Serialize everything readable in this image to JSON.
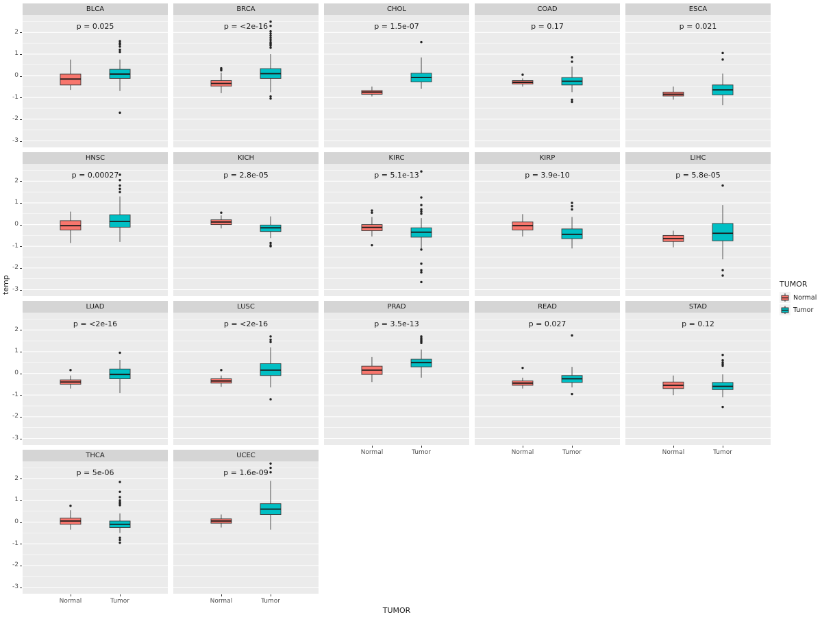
{
  "figure": {
    "y_label": "temp",
    "x_label": "TUMOR",
    "x_categories": [
      "Normal",
      "Tumor"
    ],
    "y_ticks": [
      2,
      1,
      0,
      -1,
      -2,
      -3
    ],
    "legend": {
      "title": "TUMOR",
      "entries": [
        {
          "label": "Normal",
          "color": "#F8766D"
        },
        {
          "label": "Tumor",
          "color": "#00BFC4"
        }
      ]
    }
  },
  "chart_data": {
    "type": "boxplot",
    "facet_layout": {
      "rows": 4,
      "cols": 5,
      "facet_count": 17
    },
    "x_categories": [
      "Normal",
      "Tumor"
    ],
    "y_range": [
      -3.3,
      2.8
    ],
    "colors": {
      "Normal": "#F8766D",
      "Tumor": "#00BFC4"
    },
    "grid": true,
    "legend_position": "right",
    "facets": [
      {
        "title": "BLCA",
        "p_label": "p = 0.025",
        "groups": [
          {
            "name": "Normal",
            "whisker_low": -0.65,
            "q1": -0.42,
            "median": -0.15,
            "q3": 0.08,
            "whisker_high": 0.75,
            "outliers": []
          },
          {
            "name": "Tumor",
            "whisker_low": -0.7,
            "q1": -0.12,
            "median": 0.08,
            "q3": 0.3,
            "whisker_high": 0.75,
            "outliers": [
              1.6,
              1.5,
              1.45,
              1.35,
              1.2,
              1.1,
              -1.7
            ]
          }
        ]
      },
      {
        "title": "BRCA",
        "p_label": "p = <2e-16",
        "groups": [
          {
            "name": "Normal",
            "whisker_low": -0.8,
            "q1": -0.48,
            "median": -0.35,
            "q3": -0.22,
            "whisker_high": 0.15,
            "outliers": [
              0.35,
              0.3,
              0.25
            ]
          },
          {
            "name": "Tumor",
            "whisker_low": -0.75,
            "q1": -0.12,
            "median": 0.1,
            "q3": 0.33,
            "whisker_high": 1.0,
            "outliers": [
              2.5,
              2.3,
              2.05,
              1.95,
              1.85,
              1.75,
              1.65,
              1.55,
              1.5,
              1.45,
              1.4,
              1.3,
              -0.95,
              -1.05
            ]
          }
        ]
      },
      {
        "title": "CHOL",
        "p_label": "p = 1.5e-07",
        "groups": [
          {
            "name": "Normal",
            "whisker_low": -0.95,
            "q1": -0.85,
            "median": -0.75,
            "q3": -0.68,
            "whisker_high": -0.5,
            "outliers": []
          },
          {
            "name": "Tumor",
            "whisker_low": -0.6,
            "q1": -0.28,
            "median": -0.08,
            "q3": 0.12,
            "whisker_high": 0.85,
            "outliers": [
              1.55
            ]
          }
        ]
      },
      {
        "title": "COAD",
        "p_label": "p = 0.17",
        "groups": [
          {
            "name": "Normal",
            "whisker_low": -0.5,
            "q1": -0.38,
            "median": -0.3,
            "q3": -0.22,
            "whisker_high": -0.12,
            "outliers": [
              0.05
            ]
          },
          {
            "name": "Tumor",
            "whisker_low": -0.75,
            "q1": -0.42,
            "median": -0.25,
            "q3": -0.08,
            "whisker_high": 0.42,
            "outliers": [
              0.85,
              0.65,
              -1.1,
              -1.2
            ]
          }
        ]
      },
      {
        "title": "ESCA",
        "p_label": "p = 0.021",
        "groups": [
          {
            "name": "Normal",
            "whisker_low": -1.1,
            "q1": -0.93,
            "median": -0.85,
            "q3": -0.75,
            "whisker_high": -0.5,
            "outliers": []
          },
          {
            "name": "Tumor",
            "whisker_low": -1.35,
            "q1": -0.88,
            "median": -0.65,
            "q3": -0.42,
            "whisker_high": 0.1,
            "outliers": [
              1.05,
              0.75
            ]
          }
        ]
      },
      {
        "title": "HNSC",
        "p_label": "p = 0.00027",
        "groups": [
          {
            "name": "Normal",
            "whisker_low": -0.85,
            "q1": -0.25,
            "median": -0.05,
            "q3": 0.18,
            "whisker_high": 0.6,
            "outliers": []
          },
          {
            "name": "Tumor",
            "whisker_low": -0.8,
            "q1": -0.12,
            "median": 0.15,
            "q3": 0.45,
            "whisker_high": 1.3,
            "outliers": [
              2.3,
              2.05,
              1.8,
              1.65,
              1.5
            ]
          }
        ]
      },
      {
        "title": "KICH",
        "p_label": "p = 2.8e-05",
        "groups": [
          {
            "name": "Normal",
            "whisker_low": -0.18,
            "q1": 0.0,
            "median": 0.12,
            "q3": 0.22,
            "whisker_high": 0.42,
            "outliers": [
              0.55
            ]
          },
          {
            "name": "Tumor",
            "whisker_low": -0.62,
            "q1": -0.32,
            "median": -0.15,
            "q3": -0.02,
            "whisker_high": 0.38,
            "outliers": [
              -0.85,
              -0.95,
              -1.0
            ]
          }
        ]
      },
      {
        "title": "KIRC",
        "p_label": "p = 5.1e-13",
        "groups": [
          {
            "name": "Normal",
            "whisker_low": -0.55,
            "q1": -0.28,
            "median": -0.13,
            "q3": 0.0,
            "whisker_high": 0.35,
            "outliers": [
              0.65,
              0.55,
              -0.95
            ]
          },
          {
            "name": "Tumor",
            "whisker_low": -1.1,
            "q1": -0.58,
            "median": -0.35,
            "q3": -0.15,
            "whisker_high": 0.3,
            "outliers": [
              2.45,
              1.25,
              0.9,
              0.7,
              0.6,
              0.5,
              -1.15,
              -1.8,
              -2.1,
              -2.2,
              -2.65
            ]
          }
        ]
      },
      {
        "title": "KIRP",
        "p_label": "p = 3.9e-10",
        "groups": [
          {
            "name": "Normal",
            "whisker_low": -0.55,
            "q1": -0.25,
            "median": -0.05,
            "q3": 0.12,
            "whisker_high": 0.48,
            "outliers": []
          },
          {
            "name": "Tumor",
            "whisker_low": -1.1,
            "q1": -0.65,
            "median": -0.45,
            "q3": -0.2,
            "whisker_high": 0.35,
            "outliers": [
              1.0,
              0.85,
              0.7
            ]
          }
        ]
      },
      {
        "title": "LIHC",
        "p_label": "p = 5.8e-05",
        "groups": [
          {
            "name": "Normal",
            "whisker_low": -1.05,
            "q1": -0.78,
            "median": -0.65,
            "q3": -0.5,
            "whisker_high": -0.28,
            "outliers": []
          },
          {
            "name": "Tumor",
            "whisker_low": -1.6,
            "q1": -0.75,
            "median": -0.4,
            "q3": 0.05,
            "whisker_high": 0.9,
            "outliers": [
              1.8,
              -2.1,
              -2.35
            ]
          }
        ]
      },
      {
        "title": "LUAD",
        "p_label": "p = <2e-16",
        "groups": [
          {
            "name": "Normal",
            "whisker_low": -0.7,
            "q1": -0.5,
            "median": -0.4,
            "q3": -0.3,
            "whisker_high": -0.1,
            "outliers": [
              0.15
            ]
          },
          {
            "name": "Tumor",
            "whisker_low": -0.9,
            "q1": -0.25,
            "median": -0.05,
            "q3": 0.2,
            "whisker_high": 0.62,
            "outliers": [
              0.95
            ]
          }
        ]
      },
      {
        "title": "LUSC",
        "p_label": "p = <2e-16",
        "groups": [
          {
            "name": "Normal",
            "whisker_low": -0.62,
            "q1": -0.45,
            "median": -0.35,
            "q3": -0.25,
            "whisker_high": -0.1,
            "outliers": [
              0.15
            ]
          },
          {
            "name": "Tumor",
            "whisker_low": -0.65,
            "q1": -0.1,
            "median": 0.15,
            "q3": 0.45,
            "whisker_high": 1.2,
            "outliers": [
              1.7,
              1.55,
              1.45,
              -1.2
            ]
          }
        ]
      },
      {
        "title": "PRAD",
        "p_label": "p = 3.5e-13",
        "groups": [
          {
            "name": "Normal",
            "whisker_low": -0.4,
            "q1": -0.05,
            "median": 0.15,
            "q3": 0.33,
            "whisker_high": 0.75,
            "outliers": []
          },
          {
            "name": "Tumor",
            "whisker_low": -0.2,
            "q1": 0.3,
            "median": 0.5,
            "q3": 0.65,
            "whisker_high": 1.1,
            "outliers": [
              1.7,
              1.62,
              1.55,
              1.5,
              1.45,
              1.4
            ]
          }
        ]
      },
      {
        "title": "READ",
        "p_label": "p = 0.027",
        "groups": [
          {
            "name": "Normal",
            "whisker_low": -0.7,
            "q1": -0.55,
            "median": -0.45,
            "q3": -0.35,
            "whisker_high": -0.2,
            "outliers": [
              0.25
            ]
          },
          {
            "name": "Tumor",
            "whisker_low": -0.65,
            "q1": -0.42,
            "median": -0.25,
            "q3": -0.1,
            "whisker_high": 0.3,
            "outliers": [
              1.75,
              -0.95
            ]
          }
        ]
      },
      {
        "title": "STAD",
        "p_label": "p = 0.12",
        "groups": [
          {
            "name": "Normal",
            "whisker_low": -1.0,
            "q1": -0.7,
            "median": -0.55,
            "q3": -0.4,
            "whisker_high": -0.1,
            "outliers": []
          },
          {
            "name": "Tumor",
            "whisker_low": -1.1,
            "q1": -0.75,
            "median": -0.6,
            "q3": -0.42,
            "whisker_high": -0.05,
            "outliers": [
              0.85,
              0.6,
              0.5,
              0.42,
              0.35,
              -1.55
            ]
          }
        ]
      },
      {
        "title": "THCA",
        "p_label": "p = 5e-06",
        "groups": [
          {
            "name": "Normal",
            "whisker_low": -0.35,
            "q1": -0.1,
            "median": 0.05,
            "q3": 0.18,
            "whisker_high": 0.55,
            "outliers": [
              0.75
            ]
          },
          {
            "name": "Tumor",
            "whisker_low": -0.5,
            "q1": -0.25,
            "median": -0.1,
            "q3": 0.05,
            "whisker_high": 0.4,
            "outliers": [
              1.85,
              1.4,
              1.15,
              1.0,
              0.92,
              0.85,
              0.78,
              -0.72,
              -0.82,
              -0.95
            ]
          }
        ]
      },
      {
        "title": "UCEC",
        "p_label": "p = 1.6e-09",
        "groups": [
          {
            "name": "Normal",
            "whisker_low": -0.25,
            "q1": -0.05,
            "median": 0.05,
            "q3": 0.15,
            "whisker_high": 0.35,
            "outliers": []
          },
          {
            "name": "Tumor",
            "whisker_low": -0.35,
            "q1": 0.35,
            "median": 0.6,
            "q3": 0.85,
            "whisker_high": 1.9,
            "outliers": [
              2.7,
              2.5,
              2.3
            ]
          }
        ]
      }
    ]
  }
}
